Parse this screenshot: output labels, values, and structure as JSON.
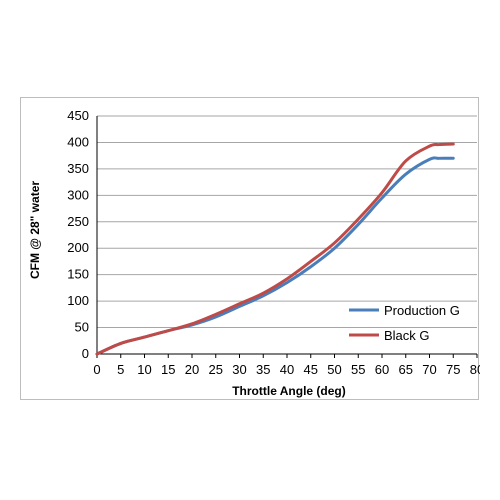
{
  "chart_data": {
    "type": "line",
    "xlabel": "Throttle Angle (deg)",
    "ylabel": "CFM @ 28\" water",
    "xlim": [
      0,
      80
    ],
    "ylim": [
      0,
      450
    ],
    "x_ticks": [
      "0",
      "5",
      "10",
      "15",
      "20",
      "25",
      "30",
      "35",
      "40",
      "45",
      "50",
      "55",
      "60",
      "65",
      "70",
      "75",
      "80"
    ],
    "y_ticks": [
      "0",
      "50",
      "100",
      "150",
      "200",
      "250",
      "300",
      "350",
      "400",
      "450"
    ],
    "grid": "horizontal",
    "legend_position": "right",
    "series": [
      {
        "name": "Production G",
        "color": "#4a7ebb",
        "x": [
          0,
          5,
          10,
          15,
          20,
          25,
          30,
          35,
          40,
          45,
          50,
          55,
          60,
          65,
          70,
          72,
          75
        ],
        "y": [
          0,
          20,
          32,
          44,
          55,
          70,
          90,
          110,
          135,
          165,
          200,
          245,
          295,
          340,
          368,
          370,
          370
        ]
      },
      {
        "name": "Black G",
        "color": "#be4b48",
        "x": [
          0,
          5,
          10,
          15,
          20,
          25,
          30,
          35,
          40,
          45,
          50,
          55,
          60,
          65,
          70,
          72,
          75
        ],
        "y": [
          0,
          20,
          32,
          44,
          57,
          75,
          95,
          115,
          142,
          175,
          210,
          255,
          305,
          365,
          393,
          396,
          397
        ]
      }
    ]
  }
}
